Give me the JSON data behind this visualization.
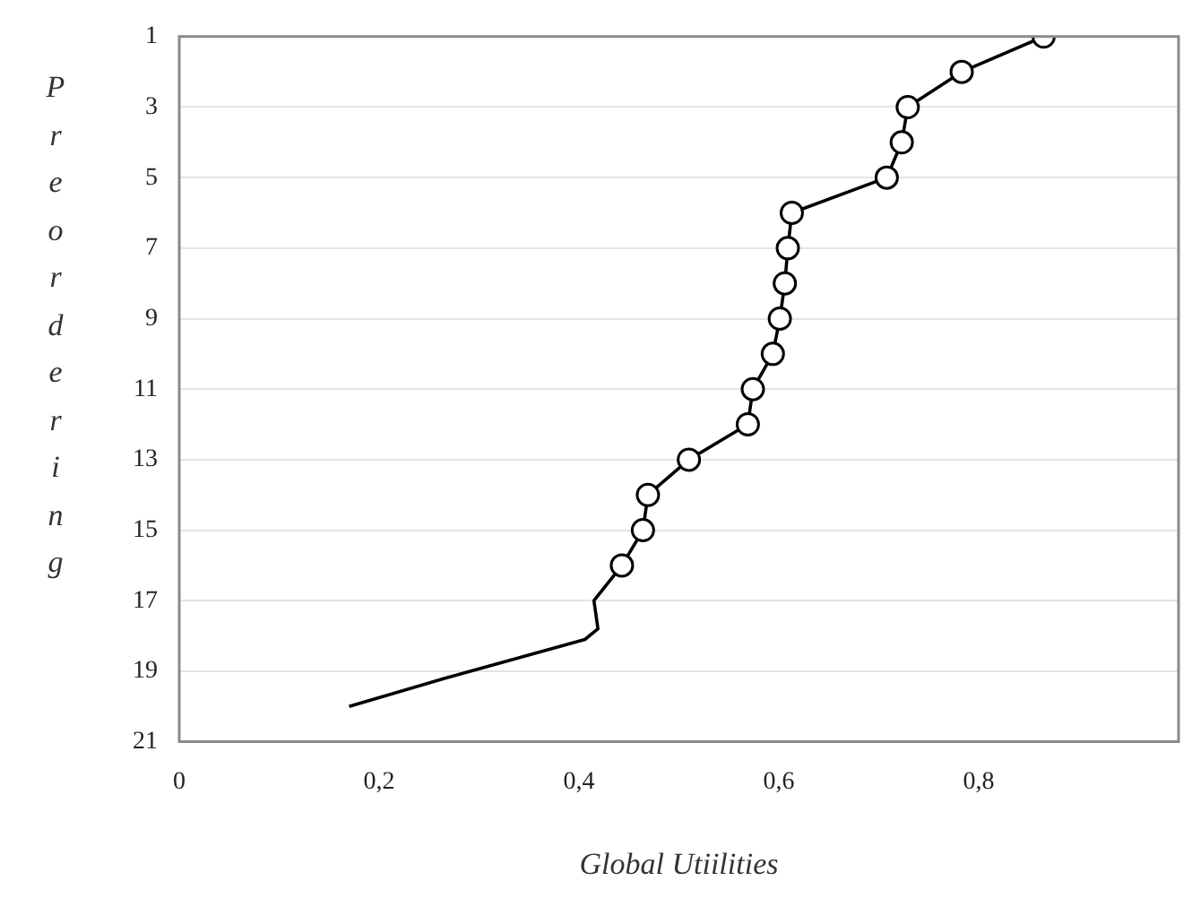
{
  "chart_data": {
    "type": "line",
    "xlabel": "Global Utiilities",
    "ylabel": "Preordering",
    "xlim": [
      0,
      1
    ],
    "xticks": [
      0,
      {
        "value": 0.2,
        "label": "0,2"
      },
      {
        "value": 0.4,
        "label": "0,4"
      },
      {
        "value": 0.6,
        "label": "0,6"
      },
      {
        "value": 0.8,
        "label": "0,8"
      }
    ],
    "ylim": [
      21,
      1
    ],
    "yticks": [
      1,
      3,
      5,
      7,
      9,
      11,
      13,
      15,
      17,
      19,
      21
    ],
    "grid": "y",
    "legend": false,
    "line_style": "solid",
    "series": [
      {
        "color": "#000000",
        "marker": "circle",
        "x": [
          0.865,
          0.783,
          0.729,
          0.723,
          0.708,
          0.613,
          0.609,
          0.606,
          0.601,
          0.594,
          0.574,
          0.569,
          0.51,
          0.469,
          0.464,
          0.443
        ],
        "values": [
          1,
          2,
          3,
          4,
          5,
          6,
          7,
          8,
          9,
          10,
          11,
          12,
          13,
          14,
          15,
          16
        ]
      },
      {
        "color": "#000000",
        "marker": "none",
        "x": [
          0.443,
          0.415,
          0.419,
          0.406,
          0.266,
          0.17
        ],
        "values": [
          16,
          17,
          17.8,
          18.1,
          19.2,
          20
        ]
      }
    ]
  }
}
